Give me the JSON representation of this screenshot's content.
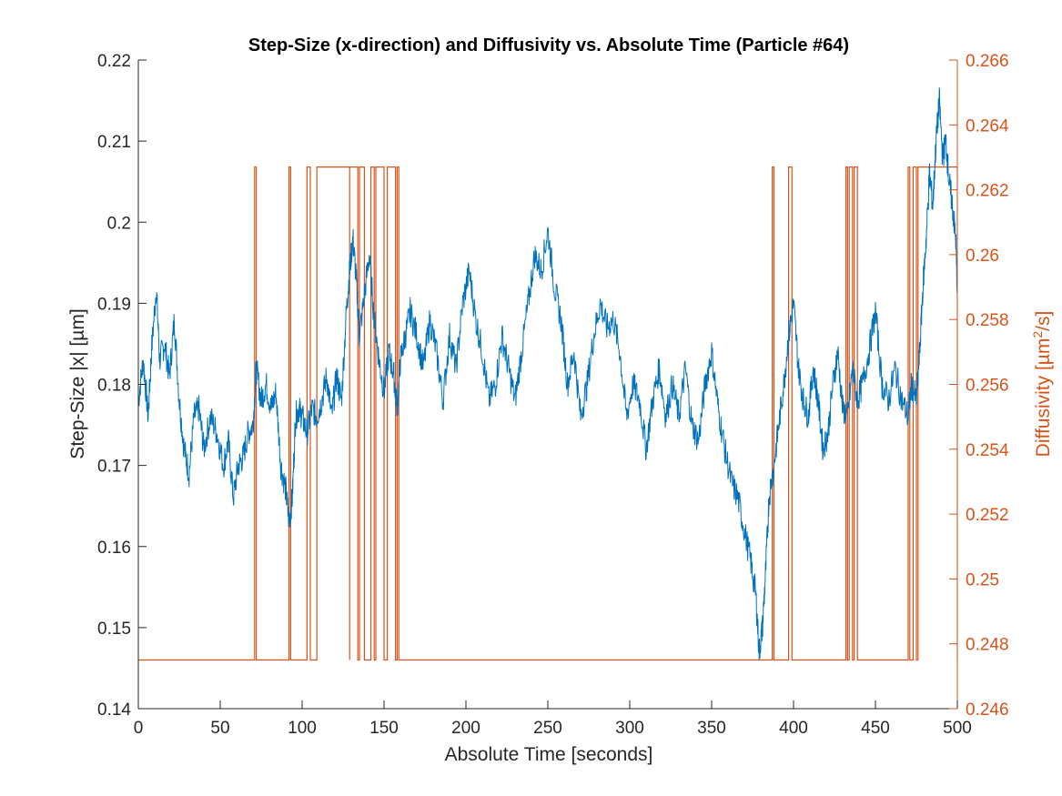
{
  "chart_data": {
    "type": "line",
    "title": "Step-Size (x-direction) and Diffusivity vs. Absolute Time (Particle #64)",
    "xlabel": "Absolute Time [seconds]",
    "ylabel_left": "Step-Size |x| [µm]",
    "ylabel_right_prefix": "Diffusivity [µm",
    "ylabel_right_sup": "2",
    "ylabel_right_suffix": "/s]",
    "xlim": [
      0,
      500
    ],
    "ylim_left": [
      0.14,
      0.22
    ],
    "ylim_right": [
      0.246,
      0.266
    ],
    "xticks": [
      0,
      50,
      100,
      150,
      200,
      250,
      300,
      350,
      400,
      450,
      500
    ],
    "xtick_labels": [
      "0",
      "50",
      "100",
      "150",
      "200",
      "250",
      "300",
      "350",
      "400",
      "450",
      "500"
    ],
    "yticks_left": [
      0.14,
      0.15,
      0.16,
      0.17,
      0.18,
      0.19,
      0.2,
      0.21,
      0.22
    ],
    "ytick_labels_left": [
      "0.14",
      "0.15",
      "0.16",
      "0.17",
      "0.18",
      "0.19",
      "0.2",
      "0.21",
      "0.22"
    ],
    "yticks_right": [
      0.246,
      0.248,
      0.25,
      0.252,
      0.254,
      0.256,
      0.258,
      0.26,
      0.262,
      0.264,
      0.266
    ],
    "ytick_labels_right": [
      "0.246",
      "0.248",
      "0.25",
      "0.252",
      "0.254",
      "0.256",
      "0.258",
      "0.26",
      "0.262",
      "0.264",
      "0.266"
    ],
    "grid": false,
    "series": [
      {
        "axis": "left",
        "color": "#0072BD",
        "x": [
          0,
          3,
          6,
          8,
          11,
          13,
          16,
          19,
          22,
          25,
          28,
          31,
          34,
          37,
          40,
          44,
          48,
          52,
          55,
          58,
          61,
          64,
          67,
          70,
          72,
          75,
          78,
          81,
          84,
          87,
          90,
          92,
          94,
          96,
          98,
          100,
          103,
          106,
          109,
          112,
          115,
          118,
          121,
          124,
          127,
          129,
          131,
          133,
          135,
          138,
          141,
          144,
          147,
          150,
          153,
          156,
          158,
          160,
          163,
          166,
          170,
          174,
          178,
          182,
          186,
          190,
          194,
          198,
          202,
          206,
          210,
          214,
          218,
          222,
          226,
          230,
          234,
          238,
          242,
          246,
          250,
          254,
          258,
          262,
          266,
          270,
          274,
          278,
          282,
          286,
          290,
          294,
          298,
          302,
          306,
          310,
          314,
          318,
          322,
          326,
          330,
          334,
          338,
          342,
          346,
          350,
          354,
          358,
          362,
          366,
          370,
          374,
          377,
          379,
          381,
          383,
          385,
          388,
          391,
          394,
          397,
          400,
          403,
          406,
          409,
          412,
          415,
          418,
          421,
          424,
          427,
          430,
          433,
          436,
          439,
          442,
          446,
          450,
          454,
          458,
          462,
          466,
          470,
          472,
          475,
          477,
          479,
          481,
          483,
          485,
          487,
          489,
          491,
          493,
          495,
          497,
          499,
          500
        ],
        "values": [
          0.178,
          0.183,
          0.176,
          0.184,
          0.192,
          0.183,
          0.185,
          0.181,
          0.188,
          0.178,
          0.172,
          0.169,
          0.176,
          0.177,
          0.172,
          0.176,
          0.174,
          0.17,
          0.173,
          0.166,
          0.17,
          0.171,
          0.174,
          0.175,
          0.182,
          0.178,
          0.18,
          0.177,
          0.179,
          0.17,
          0.167,
          0.163,
          0.166,
          0.176,
          0.177,
          0.176,
          0.174,
          0.177,
          0.176,
          0.178,
          0.181,
          0.176,
          0.181,
          0.178,
          0.189,
          0.194,
          0.198,
          0.193,
          0.186,
          0.191,
          0.196,
          0.188,
          0.183,
          0.179,
          0.184,
          0.181,
          0.177,
          0.183,
          0.186,
          0.189,
          0.186,
          0.182,
          0.188,
          0.184,
          0.178,
          0.186,
          0.182,
          0.19,
          0.194,
          0.188,
          0.184,
          0.178,
          0.18,
          0.186,
          0.182,
          0.178,
          0.184,
          0.19,
          0.196,
          0.194,
          0.199,
          0.192,
          0.188,
          0.18,
          0.184,
          0.176,
          0.18,
          0.186,
          0.19,
          0.187,
          0.188,
          0.184,
          0.176,
          0.18,
          0.178,
          0.172,
          0.178,
          0.182,
          0.176,
          0.18,
          0.176,
          0.182,
          0.175,
          0.173,
          0.18,
          0.184,
          0.177,
          0.172,
          0.168,
          0.166,
          0.162,
          0.158,
          0.154,
          0.147,
          0.15,
          0.157,
          0.166,
          0.17,
          0.175,
          0.18,
          0.186,
          0.19,
          0.182,
          0.178,
          0.176,
          0.182,
          0.178,
          0.172,
          0.174,
          0.18,
          0.184,
          0.177,
          0.176,
          0.182,
          0.178,
          0.18,
          0.184,
          0.189,
          0.18,
          0.178,
          0.182,
          0.178,
          0.176,
          0.18,
          0.178,
          0.184,
          0.192,
          0.198,
          0.206,
          0.202,
          0.21,
          0.215,
          0.208,
          0.21,
          0.205,
          0.202,
          0.198,
          0.191
        ]
      },
      {
        "axis": "right",
        "color": "#D95319",
        "low_value": 0.2475,
        "high_value": 0.2627,
        "high_intervals": [
          [
            71,
            72
          ],
          [
            92,
            93
          ],
          [
            103,
            105
          ],
          [
            109,
            134
          ],
          [
            135,
            138
          ],
          [
            142,
            144
          ],
          [
            145,
            150
          ],
          [
            152,
            157
          ],
          [
            158,
            159
          ],
          [
            387,
            388
          ],
          [
            397,
            399
          ],
          [
            432,
            433
          ],
          [
            434,
            436
          ],
          [
            437,
            439
          ],
          [
            470,
            471
          ],
          [
            473,
            475
          ],
          [
            476,
            500
          ]
        ],
        "spikes": [
          129
        ]
      }
    ]
  }
}
